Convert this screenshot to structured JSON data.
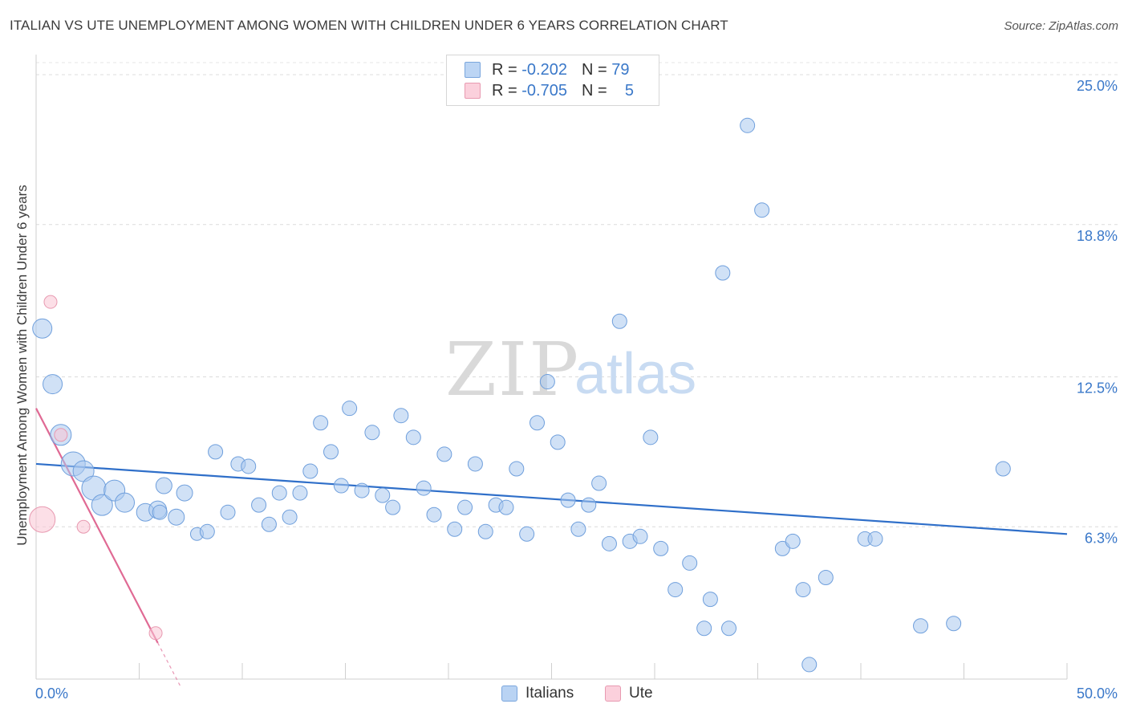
{
  "title": "ITALIAN VS UTE UNEMPLOYMENT AMONG WOMEN WITH CHILDREN UNDER 6 YEARS CORRELATION CHART",
  "source": "Source: ZipAtlas.com",
  "watermark": {
    "zip": "ZIP",
    "atlas": "atlas"
  },
  "legend": {
    "r_label": "R =",
    "n_label": "N =",
    "rows": [
      {
        "series": "Italians",
        "r": "-0.202",
        "n": "79",
        "color": "#a9c8ef",
        "border": "#7aa6dd"
      },
      {
        "series": "Ute",
        "r": "-0.705",
        "n": "5",
        "color": "#f9c5d3",
        "border": "#e89ab1"
      }
    ]
  },
  "bottom_legend": [
    {
      "label": "Italians",
      "color": "#b9d3f3",
      "border": "#7aa6dd"
    },
    {
      "label": "Ute",
      "color": "#fbd0dc",
      "border": "#e89ab1"
    }
  ],
  "chart_data": {
    "type": "scatter",
    "title": "ITALIAN VS UTE UNEMPLOYMENT AMONG WOMEN WITH CHILDREN UNDER 6 YEARS CORRELATION CHART",
    "xlabel": "",
    "ylabel": "Unemployment Among Women with Children Under 6 years",
    "xlim": [
      0,
      50
    ],
    "ylim": [
      0,
      25.5
    ],
    "x_tick_labels": [
      "0.0%",
      "50.0%"
    ],
    "y_tick_labels": [
      {
        "value": 25.0,
        "label": "25.0%"
      },
      {
        "value": 18.8,
        "label": "18.8%"
      },
      {
        "value": 12.5,
        "label": "12.5%"
      },
      {
        "value": 6.3,
        "label": "6.3%"
      }
    ],
    "grid": true,
    "legend_placement": "top-center",
    "series": [
      {
        "name": "Italians",
        "color": "#a9c8ef",
        "stroke": "#6f9fdc",
        "line_color": "#2f6fc9",
        "trend": {
          "x": [
            0,
            50
          ],
          "y": [
            8.9,
            6.0
          ]
        },
        "points": [
          {
            "x": 0.3,
            "y": 14.5,
            "s": 12
          },
          {
            "x": 0.8,
            "y": 12.2,
            "s": 12
          },
          {
            "x": 1.2,
            "y": 10.1,
            "s": 13
          },
          {
            "x": 1.8,
            "y": 8.9,
            "s": 15
          },
          {
            "x": 2.3,
            "y": 8.6,
            "s": 13
          },
          {
            "x": 2.8,
            "y": 7.9,
            "s": 15
          },
          {
            "x": 3.2,
            "y": 7.2,
            "s": 13
          },
          {
            "x": 3.8,
            "y": 7.8,
            "s": 13
          },
          {
            "x": 4.3,
            "y": 7.3,
            "s": 12
          },
          {
            "x": 5.3,
            "y": 6.9,
            "s": 11
          },
          {
            "x": 5.9,
            "y": 7.0,
            "s": 11
          },
          {
            "x": 6.2,
            "y": 8.0,
            "s": 10
          },
          {
            "x": 6.8,
            "y": 6.7,
            "s": 10
          },
          {
            "x": 7.2,
            "y": 7.7,
            "s": 10
          },
          {
            "x": 7.8,
            "y": 6.0,
            "s": 8
          },
          {
            "x": 8.3,
            "y": 6.1,
            "s": 9
          },
          {
            "x": 8.7,
            "y": 9.4,
            "s": 9
          },
          {
            "x": 9.3,
            "y": 6.9,
            "s": 9
          },
          {
            "x": 9.8,
            "y": 8.9,
            "s": 9
          },
          {
            "x": 10.3,
            "y": 8.8,
            "s": 9
          },
          {
            "x": 10.8,
            "y": 7.2,
            "s": 9
          },
          {
            "x": 11.3,
            "y": 6.4,
            "s": 9
          },
          {
            "x": 11.8,
            "y": 7.7,
            "s": 9
          },
          {
            "x": 12.3,
            "y": 6.7,
            "s": 9
          },
          {
            "x": 12.8,
            "y": 7.7,
            "s": 9
          },
          {
            "x": 13.3,
            "y": 8.6,
            "s": 9
          },
          {
            "x": 13.8,
            "y": 10.6,
            "s": 9
          },
          {
            "x": 14.3,
            "y": 9.4,
            "s": 9
          },
          {
            "x": 14.8,
            "y": 8.0,
            "s": 9
          },
          {
            "x": 15.2,
            "y": 11.2,
            "s": 9
          },
          {
            "x": 15.8,
            "y": 7.8,
            "s": 9
          },
          {
            "x": 16.3,
            "y": 10.2,
            "s": 9
          },
          {
            "x": 16.8,
            "y": 7.6,
            "s": 9
          },
          {
            "x": 17.3,
            "y": 7.1,
            "s": 9
          },
          {
            "x": 17.7,
            "y": 10.9,
            "s": 9
          },
          {
            "x": 18.3,
            "y": 10.0,
            "s": 9
          },
          {
            "x": 18.8,
            "y": 7.9,
            "s": 9
          },
          {
            "x": 19.3,
            "y": 6.8,
            "s": 9
          },
          {
            "x": 19.8,
            "y": 9.3,
            "s": 9
          },
          {
            "x": 20.3,
            "y": 6.2,
            "s": 9
          },
          {
            "x": 20.8,
            "y": 7.1,
            "s": 9
          },
          {
            "x": 21.3,
            "y": 8.9,
            "s": 9
          },
          {
            "x": 21.8,
            "y": 6.1,
            "s": 9
          },
          {
            "x": 22.3,
            "y": 7.2,
            "s": 9
          },
          {
            "x": 22.8,
            "y": 7.1,
            "s": 9
          },
          {
            "x": 23.3,
            "y": 8.7,
            "s": 9
          },
          {
            "x": 23.8,
            "y": 6.0,
            "s": 9
          },
          {
            "x": 24.3,
            "y": 10.6,
            "s": 9
          },
          {
            "x": 24.8,
            "y": 12.3,
            "s": 9
          },
          {
            "x": 25.3,
            "y": 9.8,
            "s": 9
          },
          {
            "x": 25.8,
            "y": 7.4,
            "s": 9
          },
          {
            "x": 26.3,
            "y": 6.2,
            "s": 9
          },
          {
            "x": 26.8,
            "y": 7.2,
            "s": 9
          },
          {
            "x": 27.3,
            "y": 8.1,
            "s": 9
          },
          {
            "x": 27.8,
            "y": 5.6,
            "s": 9
          },
          {
            "x": 28.3,
            "y": 14.8,
            "s": 9
          },
          {
            "x": 28.8,
            "y": 5.7,
            "s": 9
          },
          {
            "x": 29.3,
            "y": 5.9,
            "s": 9
          },
          {
            "x": 29.8,
            "y": 10.0,
            "s": 9
          },
          {
            "x": 30.3,
            "y": 5.4,
            "s": 9
          },
          {
            "x": 31.0,
            "y": 3.7,
            "s": 9
          },
          {
            "x": 31.7,
            "y": 4.8,
            "s": 9
          },
          {
            "x": 32.4,
            "y": 2.1,
            "s": 9
          },
          {
            "x": 32.7,
            "y": 3.3,
            "s": 9
          },
          {
            "x": 33.3,
            "y": 16.8,
            "s": 9
          },
          {
            "x": 33.6,
            "y": 2.1,
            "s": 9
          },
          {
            "x": 34.5,
            "y": 22.9,
            "s": 9
          },
          {
            "x": 35.2,
            "y": 19.4,
            "s": 9
          },
          {
            "x": 36.2,
            "y": 5.4,
            "s": 9
          },
          {
            "x": 36.7,
            "y": 5.7,
            "s": 9
          },
          {
            "x": 37.2,
            "y": 3.7,
            "s": 9
          },
          {
            "x": 37.5,
            "y": 0.6,
            "s": 9
          },
          {
            "x": 38.3,
            "y": 4.2,
            "s": 9
          },
          {
            "x": 40.2,
            "y": 5.8,
            "s": 9
          },
          {
            "x": 40.7,
            "y": 5.8,
            "s": 9
          },
          {
            "x": 42.9,
            "y": 2.2,
            "s": 9
          },
          {
            "x": 44.5,
            "y": 2.3,
            "s": 9
          },
          {
            "x": 46.9,
            "y": 8.7,
            "s": 9
          },
          {
            "x": 6.0,
            "y": 6.9,
            "s": 9
          }
        ]
      },
      {
        "name": "Ute",
        "color": "#f9c5d3",
        "stroke": "#e89ab1",
        "line_color": "#e06a94",
        "trend": {
          "x": [
            0,
            5.9
          ],
          "y": [
            11.2,
            1.5
          ]
        },
        "trend_dashed_extension": {
          "x": [
            5.9,
            7.0
          ],
          "y": [
            1.5,
            -0.3
          ]
        },
        "points": [
          {
            "x": 0.3,
            "y": 6.6,
            "s": 16
          },
          {
            "x": 0.7,
            "y": 15.6,
            "s": 8
          },
          {
            "x": 1.2,
            "y": 10.1,
            "s": 8
          },
          {
            "x": 2.3,
            "y": 6.3,
            "s": 8
          },
          {
            "x": 5.8,
            "y": 1.9,
            "s": 8
          }
        ]
      }
    ]
  }
}
